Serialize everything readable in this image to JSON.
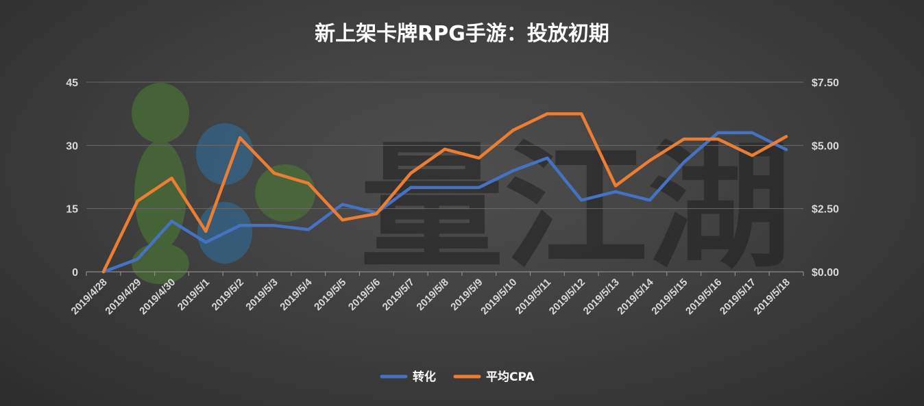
{
  "chart_data": {
    "type": "line",
    "title": "新上架卡牌RPG手游：投放初期",
    "categories": [
      "2019/4/28",
      "2019/4/29",
      "2019/4/30",
      "2019/5/1",
      "2019/5/2",
      "2019/5/3",
      "2019/5/4",
      "2019/5/5",
      "2019/5/6",
      "2019/5/7",
      "2019/5/8",
      "2019/5/9",
      "2019/5/10",
      "2019/5/11",
      "2019/5/12",
      "2019/5/13",
      "2019/5/14",
      "2019/5/15",
      "2019/5/16",
      "2019/5/17",
      "2019/5/18"
    ],
    "y_left": {
      "ylim": [
        0,
        45
      ],
      "ticks": [
        "0",
        "15",
        "30",
        "45"
      ]
    },
    "y_right": {
      "ylim": [
        0,
        7.5
      ],
      "ticks": [
        "$0.00",
        "$2.50",
        "$5.00",
        "$7.50"
      ]
    },
    "series": [
      {
        "name": "转化",
        "axis": "left",
        "color": "#4472c4",
        "values": [
          0,
          3,
          12,
          7,
          11,
          11,
          10,
          16,
          14,
          20,
          20,
          20,
          24,
          27,
          17,
          19,
          17,
          26,
          33,
          33,
          29
        ]
      },
      {
        "name": "平均CPA",
        "axis": "right",
        "color": "#ed7d31",
        "values": [
          0,
          2.8,
          3.7,
          1.6,
          5.3,
          3.9,
          3.5,
          2.05,
          2.3,
          3.9,
          4.85,
          4.5,
          5.6,
          6.25,
          6.25,
          3.4,
          4.4,
          5.25,
          5.25,
          4.6,
          5.35
        ]
      }
    ],
    "grid": true,
    "legend": "bottom"
  },
  "watermark": {
    "text": "量江湖"
  }
}
